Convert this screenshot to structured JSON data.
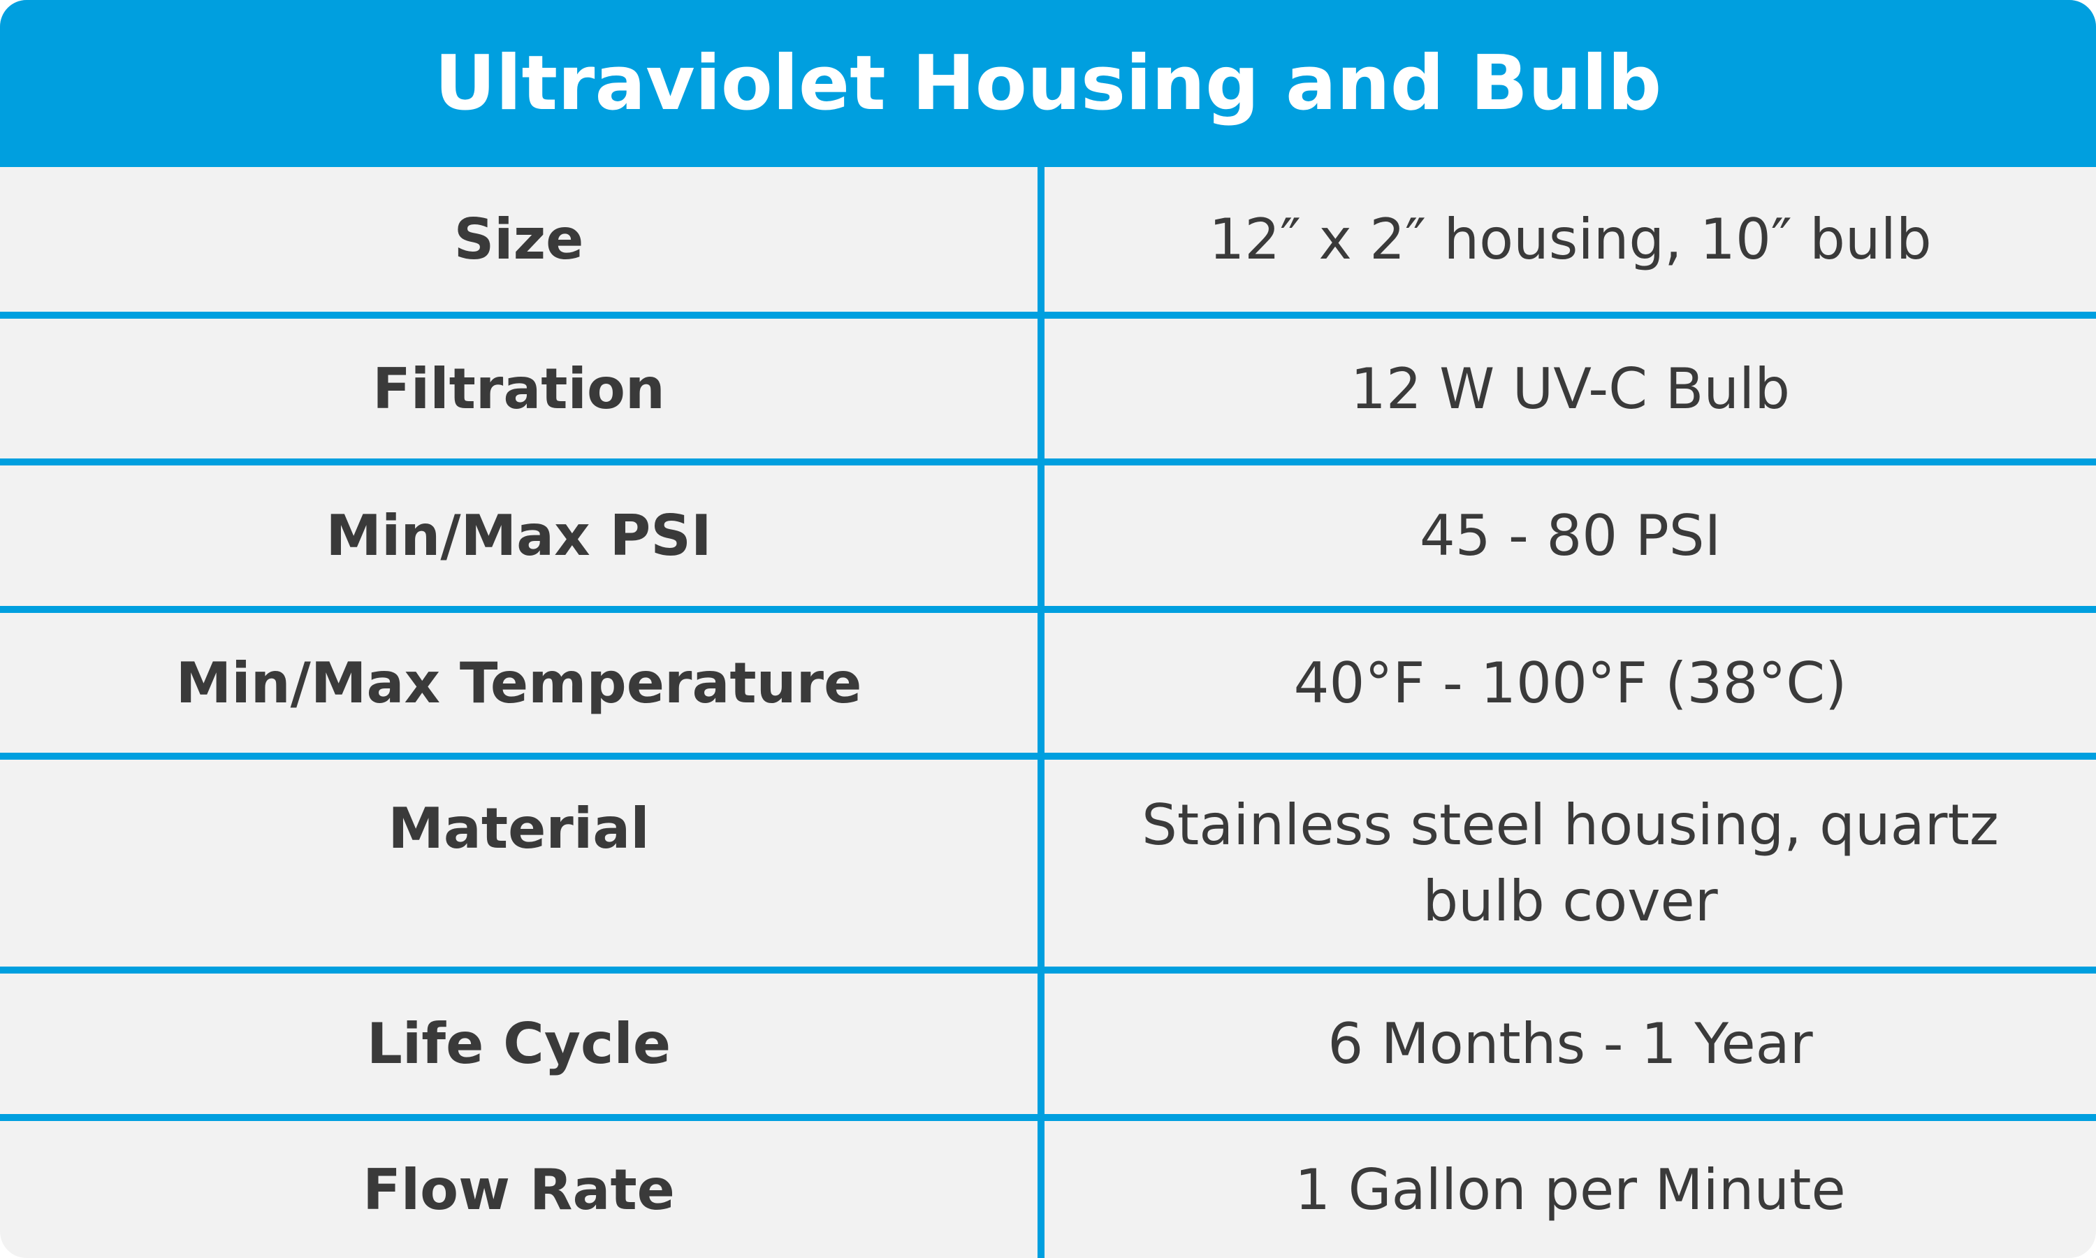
{
  "header": {
    "title": "Ultraviolet Housing and Bulb"
  },
  "table": {
    "rows": [
      [
        "Size",
        "12″ x 2″ housing, 10″ bulb"
      ],
      [
        "Filtration",
        "12 W UV-C Bulb"
      ],
      [
        "Min/Max PSI",
        "45 - 80 PSI"
      ],
      [
        "Min/Max Temperature",
        "40°F - 100°F (38°C)"
      ],
      [
        "Material",
        "Stainless steel housing, quartz bulb cover"
      ],
      [
        "Life Cycle",
        "6 Months - 1 Year"
      ],
      [
        "Flow Rate",
        "1 Gallon per Minute"
      ]
    ]
  }
}
